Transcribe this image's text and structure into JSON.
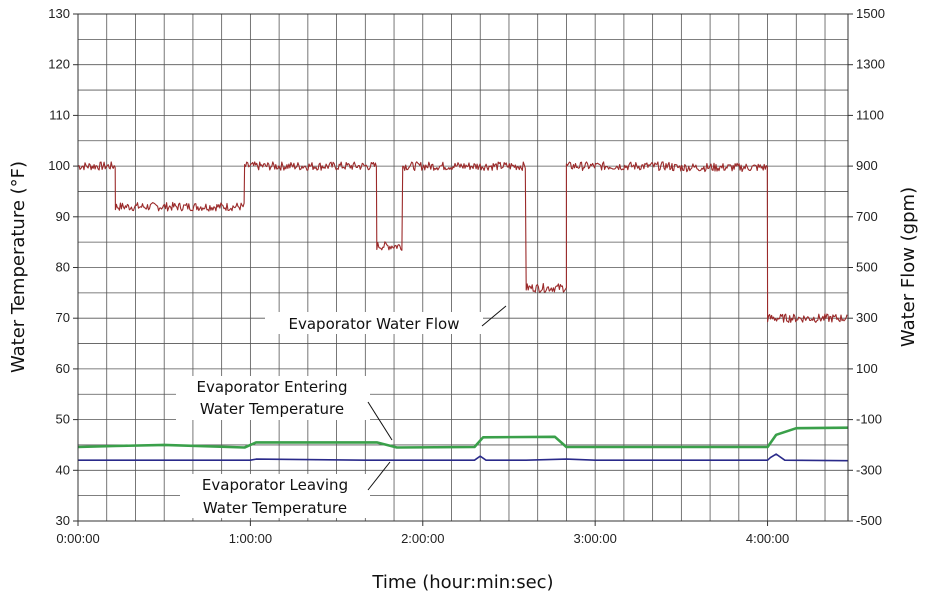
{
  "chart_data": {
    "type": "line",
    "xlabel": "Time (hour:min:sec)",
    "ylabel_left": "Water Temperature (°F)",
    "ylabel_right": "Water Flow (gpm)",
    "x_unit": "minutes",
    "xlim": [
      0,
      268
    ],
    "ylim_left": [
      30,
      130
    ],
    "ylim_right": [
      -500,
      1500
    ],
    "x_ticks": [
      {
        "value": 0,
        "label": "0:00:00"
      },
      {
        "value": 60,
        "label": "1:00:00"
      },
      {
        "value": 120,
        "label": "2:00:00"
      },
      {
        "value": 180,
        "label": "3:00:00"
      },
      {
        "value": 240,
        "label": "4:00:00"
      }
    ],
    "y_ticks_left": [
      "30",
      "40",
      "50",
      "60",
      "70",
      "80",
      "90",
      "100",
      "110",
      "120",
      "130"
    ],
    "y_ticks_right": [
      "-500",
      "-300",
      "-100",
      "100",
      "300",
      "500",
      "700",
      "900",
      "1100",
      "1300",
      "1500"
    ],
    "grid": true,
    "series": [
      {
        "name": "Evaporator Water Flow",
        "axis": "right",
        "color": "#9b2a2a",
        "x": [
          0,
          13,
          13,
          58,
          58,
          104,
          104,
          113,
          113,
          156,
          156,
          170,
          170,
          207,
          207,
          240,
          240,
          268
        ],
        "y": [
          900,
          900,
          740,
          740,
          900,
          900,
          585,
          585,
          900,
          900,
          420,
          420,
          900,
          900,
          895,
          895,
          300,
          300
        ]
      },
      {
        "name": "Evaporator Entering Water Temperature",
        "axis": "left",
        "color": "#3aa04a",
        "x": [
          0,
          13,
          30,
          58,
          62,
          104,
          111,
          138,
          141,
          166,
          170,
          240,
          243,
          250,
          268
        ],
        "y": [
          44.6,
          44.8,
          45.0,
          44.5,
          45.5,
          45.5,
          44.5,
          44.6,
          46.5,
          46.6,
          44.6,
          44.6,
          47.0,
          48.3,
          48.4
        ]
      },
      {
        "name": "Evaporator Leaving Water Temperature",
        "axis": "left",
        "color": "#2a2a8a",
        "x": [
          0,
          60,
          62,
          100,
          138,
          140,
          142,
          156,
          170,
          180,
          240,
          241,
          243,
          246,
          268
        ],
        "y": [
          42.0,
          42.0,
          42.2,
          42.0,
          42.0,
          42.8,
          42.0,
          42.0,
          42.2,
          42.0,
          42.0,
          42.5,
          43.2,
          42.0,
          41.9
        ]
      }
    ],
    "annotations": {
      "flow": "Evaporator Water Flow",
      "entering_line1": "Evaporator Entering",
      "entering_line2": "Water Temperature",
      "leaving_line1": "Evaporator Leaving",
      "leaving_line2": "Water Temperature"
    }
  }
}
